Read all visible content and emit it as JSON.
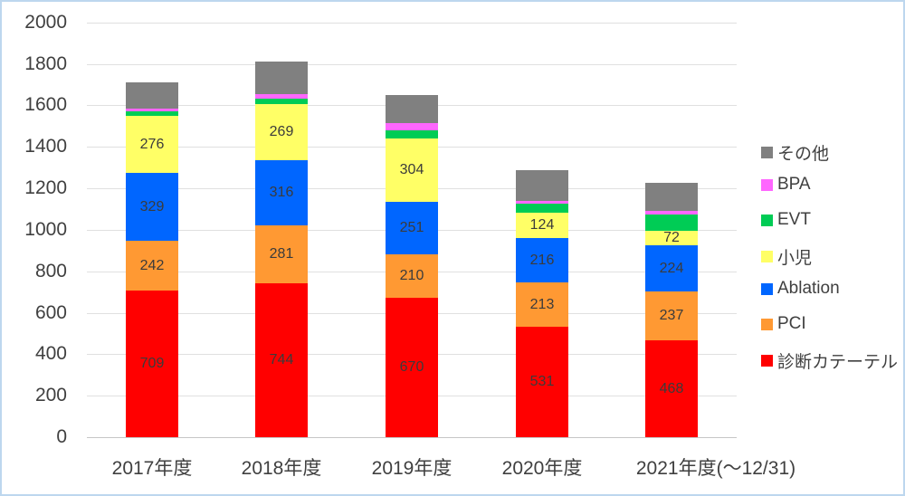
{
  "chart_data": {
    "type": "bar",
    "stacked": true,
    "title": "",
    "xlabel": "",
    "ylabel": "",
    "categories": [
      "2017年度",
      "2018年度",
      "2019年度",
      "2020年度",
      "2021年度(～12/31)"
    ],
    "series": [
      {
        "name": "診断カテーテル",
        "color": "#FF0000",
        "values": [
          709,
          744,
          670,
          531,
          468
        ],
        "labels_shown": true
      },
      {
        "name": "PCI",
        "color": "#FF9933",
        "values": [
          242,
          281,
          210,
          213,
          237
        ],
        "labels_shown": true
      },
      {
        "name": "Ablation",
        "color": "#0066FF",
        "values": [
          329,
          316,
          251,
          216,
          224
        ],
        "labels_shown": true
      },
      {
        "name": "小児",
        "color": "#FFFF66",
        "values": [
          276,
          269,
          304,
          124,
          72
        ],
        "labels_shown": true
      },
      {
        "name": "EVT",
        "color": "#00CC55",
        "values": [
          20,
          26,
          40,
          45,
          80
        ],
        "labels_shown": false,
        "values_estimated": true
      },
      {
        "name": "BPA",
        "color": "#FF66FF",
        "values": [
          12,
          21,
          33,
          12,
          17
        ],
        "labels_shown": false,
        "values_estimated": true
      },
      {
        "name": "その他",
        "color": "#808080",
        "values": [
          125,
          156,
          134,
          150,
          135
        ],
        "labels_shown": false,
        "values_estimated": true
      }
    ],
    "ylim": [
      0,
      2000
    ],
    "ytick_interval": 200,
    "yticks": [
      0,
      200,
      400,
      600,
      800,
      1000,
      1200,
      1400,
      1600,
      1800,
      2000
    ],
    "grid": true,
    "legend_position": "right",
    "legend_order": [
      "その他",
      "BPA",
      "EVT",
      "小児",
      "Ablation",
      "PCI",
      "診断カテーテル"
    ]
  },
  "colors": {
    "frame_border": "#BDD7EE",
    "gridline": "#E0E0E0",
    "axis_line": "#C6C6C6",
    "axis_text": "#404040",
    "data_label_text": "#3B3B3B",
    "background": "#FFFFFF"
  }
}
